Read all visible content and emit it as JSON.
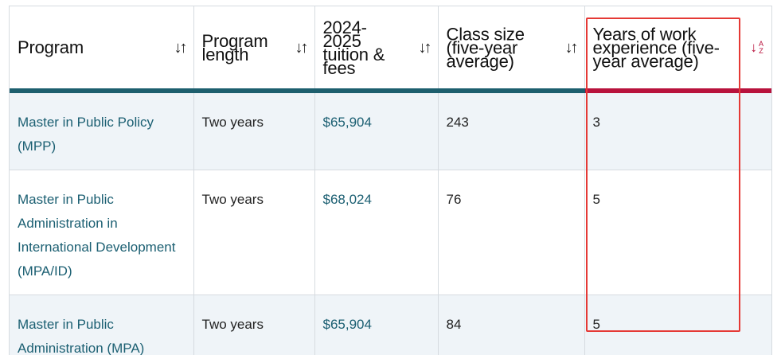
{
  "table": {
    "columns": [
      {
        "label": "Program",
        "sort_icon": "sort-arrows-icon"
      },
      {
        "label": "Program length",
        "sort_icon": "sort-arrows-icon"
      },
      {
        "label": "2024-2025 tuition & fees",
        "sort_icon": "sort-arrows-icon"
      },
      {
        "label": "Class size (five-year average)",
        "sort_icon": "sort-arrows-icon"
      },
      {
        "label": "Years of work experience (five-year average)",
        "sort_icon": "sort-az-icon"
      }
    ],
    "sort_az": {
      "glyph": "↓",
      "letters_top": "A",
      "letters_bottom": "Z"
    },
    "rows": [
      {
        "program": "Master in Public Policy (MPP)",
        "length": "Two years",
        "tuition": "$65,904",
        "class_size": "243",
        "experience": "3"
      },
      {
        "program": "Master in Public Administration in International Development (MPA/ID)",
        "length": "Two years",
        "tuition": "$68,024",
        "class_size": "76",
        "experience": "5"
      },
      {
        "program": "Master in Public Administration (MPA)",
        "length": "Two years",
        "tuition": "$65,904",
        "class_size": "84",
        "experience": "5"
      }
    ]
  },
  "colors": {
    "header_rule": "#1d5f6e",
    "active_rule": "#b8123c",
    "link": "#1b5f72",
    "shaded_row": "#eff4f8",
    "highlight": "#e53935"
  }
}
